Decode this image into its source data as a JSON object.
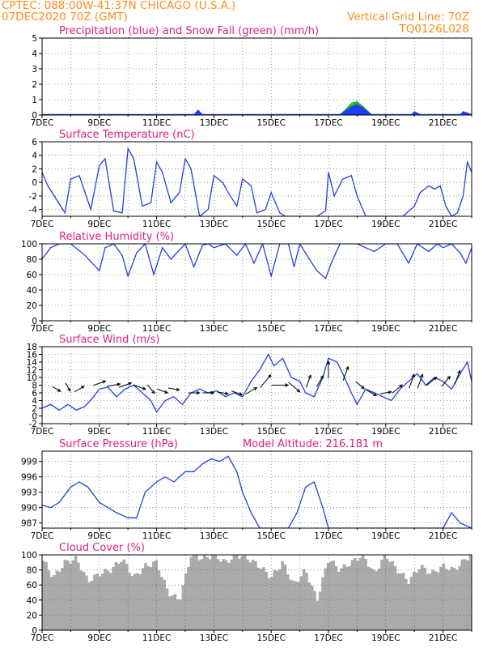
{
  "header": {
    "line1": "CPTEC:   088:00W-41:37N   CHICAGO (U.S.A.)",
    "line2_left": "07DEC2020 70Z (GMT)",
    "line2_right": "Vertical Grid Line: 70Z",
    "code": "TQ0126L028"
  },
  "colors": {
    "precip": "#1e3cff",
    "snow": "#22bb22",
    "line": "#2040e0",
    "cloud": "#aaaaaa",
    "title": "#e0207a",
    "header": "#ff8c1a"
  },
  "chart_data": [
    {
      "id": "precip",
      "type": "area",
      "title": "Precipitation (blue) and Snow Fall (green) (mm/h)",
      "ylim": [
        0,
        5
      ],
      "yticks": [
        0,
        1,
        2,
        3,
        4,
        5
      ],
      "x": [
        7.0,
        12.3,
        12.45,
        12.6,
        17.4,
        17.6,
        17.8,
        18.0,
        18.2,
        18.5,
        19.9,
        20.0,
        20.2,
        21.6,
        21.7,
        22.0
      ],
      "precip": [
        0.06,
        0.06,
        0.35,
        0.06,
        0.06,
        0.3,
        0.55,
        0.7,
        0.5,
        0.06,
        0.06,
        0.25,
        0.06,
        0.06,
        0.25,
        0.06
      ],
      "snow": [
        0.06,
        0.06,
        0.12,
        0.06,
        0.06,
        0.4,
        0.8,
        0.9,
        0.6,
        0.06,
        0.06,
        0.15,
        0.06,
        0.06,
        0.15,
        0.06
      ],
      "xticks": [
        "7DEC",
        "9DEC",
        "11DEC",
        "13DEC",
        "15DEC",
        "17DEC",
        "19DEC",
        "21DEC"
      ]
    },
    {
      "id": "temp",
      "type": "line",
      "title": "Surface Temperature (nC)",
      "ylim": [
        -5,
        6
      ],
      "yticks": [
        -4,
        -2,
        0,
        2,
        4,
        6
      ],
      "x": [
        7.0,
        7.2,
        7.5,
        7.8,
        8.0,
        8.3,
        8.7,
        9.0,
        9.2,
        9.5,
        9.8,
        10.0,
        10.2,
        10.5,
        10.8,
        11.0,
        11.2,
        11.5,
        11.8,
        12.0,
        12.2,
        12.5,
        12.8,
        13.0,
        13.3,
        13.5,
        13.8,
        14.0,
        14.3,
        14.5,
        14.8,
        15.0,
        15.3,
        15.5,
        15.8,
        16.0,
        16.3,
        16.6,
        16.9,
        17.0,
        17.2,
        17.5,
        17.8,
        18.0,
        18.3,
        18.6,
        19.0,
        19.3,
        19.6,
        20.0,
        20.2,
        20.5,
        20.7,
        20.9,
        21.1,
        21.3,
        21.5,
        21.7,
        21.85,
        22.0
      ],
      "y": [
        1.5,
        -0.5,
        -2.5,
        -4.5,
        0.5,
        1.0,
        -4.0,
        2.5,
        3.5,
        -4.2,
        -4.5,
        5.0,
        3.5,
        -3.5,
        -3.0,
        3.0,
        1.5,
        -3.0,
        -1.5,
        3.5,
        2.0,
        -5.0,
        -4.0,
        1.0,
        0.0,
        -1.5,
        -3.5,
        0.5,
        -0.5,
        -4.5,
        -4.0,
        -1.5,
        -4.5,
        -5.0,
        -5.0,
        -5.0,
        -5.0,
        -5.0,
        -4.2,
        1.5,
        -2.0,
        0.5,
        1.0,
        -2.0,
        -5.0,
        -5.0,
        -5.0,
        -5.0,
        -5.0,
        -3.5,
        -1.5,
        -0.5,
        -1.0,
        -0.5,
        -3.5,
        -5.0,
        -4.5,
        -2.0,
        3.0,
        1.5
      ],
      "xticks": [
        "7DEC",
        "9DEC",
        "11DEC",
        "13DEC",
        "15DEC",
        "17DEC",
        "19DEC",
        "21DEC"
      ]
    },
    {
      "id": "rh",
      "type": "line",
      "title": "Relative Humidity (%)",
      "ylim": [
        0,
        100
      ],
      "yticks": [
        0,
        20,
        40,
        60,
        80,
        100
      ],
      "x": [
        7.0,
        7.3,
        7.6,
        8.0,
        8.5,
        9.0,
        9.2,
        9.5,
        9.8,
        10.0,
        10.3,
        10.6,
        10.9,
        11.2,
        11.5,
        12.0,
        12.3,
        12.6,
        12.8,
        13.0,
        13.4,
        13.8,
        14.1,
        14.4,
        14.7,
        15.0,
        15.3,
        15.6,
        15.8,
        16.0,
        16.3,
        16.6,
        16.9,
        17.1,
        17.4,
        17.7,
        18.0,
        18.3,
        18.6,
        19.0,
        19.4,
        19.8,
        20.1,
        20.5,
        20.8,
        21.0,
        21.3,
        21.6,
        21.8,
        22.0
      ],
      "y": [
        80,
        95,
        100,
        100,
        85,
        65,
        95,
        100,
        85,
        58,
        88,
        100,
        60,
        95,
        80,
        100,
        70,
        98,
        100,
        95,
        100,
        85,
        100,
        75,
        100,
        58,
        100,
        100,
        70,
        100,
        82,
        65,
        55,
        75,
        100,
        100,
        100,
        95,
        90,
        100,
        100,
        75,
        100,
        90,
        100,
        95,
        100,
        88,
        75,
        95
      ],
      "xticks": [
        "7DEC",
        "9DEC",
        "11DEC",
        "13DEC",
        "15DEC",
        "17DEC",
        "19DEC",
        "21DEC"
      ]
    },
    {
      "id": "wind",
      "type": "line",
      "title": "Surface Wind (m/s)",
      "ylim": [
        -2,
        18
      ],
      "yticks": [
        -2,
        0,
        2,
        4,
        6,
        8,
        10,
        12,
        14,
        16,
        18
      ],
      "x": [
        7.0,
        7.3,
        7.6,
        7.9,
        8.2,
        8.5,
        8.8,
        9.0,
        9.3,
        9.6,
        9.9,
        10.2,
        10.5,
        10.8,
        11.0,
        11.3,
        11.6,
        11.9,
        12.2,
        12.5,
        12.8,
        13.1,
        13.4,
        13.7,
        14.0,
        14.3,
        14.6,
        14.9,
        15.1,
        15.4,
        15.7,
        16.0,
        16.2,
        16.5,
        16.8,
        17.0,
        17.3,
        17.5,
        17.8,
        18.0,
        18.3,
        18.6,
        18.9,
        19.2,
        19.5,
        19.8,
        20.1,
        20.4,
        20.7,
        21.0,
        21.3,
        21.6,
        21.85,
        22.0
      ],
      "y": [
        2,
        3,
        1.5,
        3,
        1.5,
        2.5,
        5,
        7,
        7.5,
        5,
        7,
        8,
        6,
        4,
        1,
        4,
        5,
        3,
        6,
        7,
        6,
        6.5,
        5,
        6,
        5,
        9,
        12,
        16,
        13,
        15,
        10,
        9,
        6,
        5,
        10,
        15,
        14,
        11,
        6,
        3,
        7,
        6,
        5,
        4,
        7,
        9,
        11,
        8,
        10,
        9,
        7,
        11,
        14,
        9
      ],
      "xticks": [
        "7DEC",
        "9DEC",
        "11DEC",
        "13DEC",
        "15DEC",
        "17DEC",
        "19DEC",
        "21DEC"
      ]
    },
    {
      "id": "pres",
      "type": "line",
      "title": "Surface Pressure (hPa)",
      "subtitle": "Model Altitude: 216.181 m",
      "ylim": [
        986,
        1001
      ],
      "yticks": [
        987,
        990,
        993,
        996,
        999
      ],
      "x": [
        7.0,
        7.3,
        7.6,
        8.0,
        8.3,
        8.6,
        9.0,
        9.3,
        9.6,
        10.0,
        10.3,
        10.6,
        11.0,
        11.3,
        11.6,
        12.0,
        12.3,
        12.6,
        12.9,
        13.2,
        13.5,
        13.8,
        14.0,
        14.3,
        14.6,
        15.0,
        15.3,
        15.6,
        15.9,
        16.2,
        16.5,
        16.8,
        17.0,
        17.5,
        18.0,
        18.5,
        19.0,
        19.5,
        20.0,
        20.5,
        20.8,
        21.0,
        21.3,
        21.6,
        22.0
      ],
      "y": [
        990.5,
        990,
        991,
        994,
        995,
        994,
        991,
        990,
        989,
        988,
        988,
        993,
        995,
        996,
        995,
        997,
        997,
        998.5,
        999.5,
        999,
        1000,
        997,
        993,
        989,
        985,
        985,
        985,
        985,
        989,
        994,
        995,
        990,
        985,
        985,
        985,
        985,
        985,
        985,
        985,
        985,
        985,
        986,
        989,
        987,
        985
      ],
      "xticks": [
        "7DEC",
        "9DEC",
        "11DEC",
        "13DEC",
        "15DEC",
        "17DEC",
        "19DEC",
        "21DEC"
      ]
    },
    {
      "id": "cloud",
      "type": "area",
      "title": "Cloud Cover (%)",
      "ylim": [
        0,
        100
      ],
      "yticks": [
        0,
        20,
        40,
        60,
        80,
        100
      ],
      "x": [
        7.0,
        7.4,
        7.8,
        8.2,
        8.6,
        9.0,
        9.4,
        9.8,
        10.2,
        10.6,
        11.0,
        11.4,
        11.8,
        12.2,
        12.6,
        13.0,
        13.4,
        13.8,
        14.2,
        14.6,
        15.0,
        15.4,
        15.8,
        16.2,
        16.6,
        17.0,
        17.4,
        17.8,
        18.2,
        18.6,
        19.0,
        19.4,
        19.8,
        20.2,
        20.6,
        21.0,
        21.4,
        21.8,
        22.0
      ],
      "y": [
        95,
        70,
        90,
        95,
        65,
        75,
        80,
        95,
        70,
        85,
        90,
        50,
        40,
        100,
        95,
        100,
        90,
        100,
        95,
        85,
        70,
        90,
        60,
        80,
        40,
        95,
        80,
        90,
        100,
        75,
        100,
        80,
        65,
        85,
        75,
        85,
        80,
        95,
        100
      ],
      "xticks": [
        "7DEC",
        "9DEC",
        "11DEC",
        "13DEC",
        "15DEC",
        "17DEC",
        "19DEC",
        "21DEC"
      ]
    }
  ],
  "wind_arrows": {
    "x": [
      7.5,
      7.9,
      8.3,
      9.0,
      9.5,
      9.9,
      10.4,
      10.8,
      11.2,
      11.6,
      12.3,
      12.8,
      13.3,
      13.8,
      14.3,
      14.8,
      15.3,
      15.8,
      16.3,
      16.7,
      17.0,
      17.6,
      18.1,
      18.5,
      19.0,
      19.4,
      19.9,
      20.2,
      20.6,
      21.1,
      21.5
    ],
    "y": [
      7,
      7.5,
      7,
      8.5,
      8,
      8,
      7.5,
      7,
      6.5,
      7,
      6,
      6,
      6,
      6,
      6.5,
      9,
      8,
      7.5,
      9,
      9,
      12,
      11,
      8,
      6,
      6,
      7,
      9,
      9,
      9,
      9,
      10
    ],
    "speed": [
      3,
      3,
      4,
      5,
      5,
      5,
      5,
      4,
      4,
      4,
      4,
      4,
      4,
      4,
      5,
      7,
      7,
      6,
      5,
      5,
      7,
      6,
      4,
      4,
      4,
      5,
      6,
      6,
      5,
      5,
      6
    ],
    "dir": [
      300,
      330,
      240,
      250,
      260,
      250,
      290,
      320,
      290,
      280,
      270,
      270,
      280,
      290,
      240,
      220,
      270,
      310,
      200,
      210,
      180,
      200,
      310,
      300,
      260,
      230,
      200,
      200,
      230,
      220,
      200
    ]
  }
}
